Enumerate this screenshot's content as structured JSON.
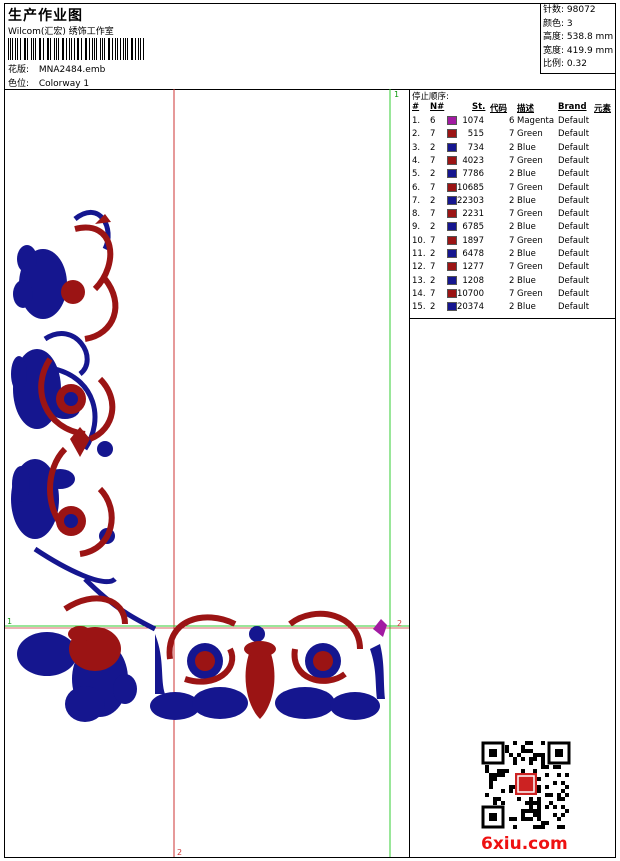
{
  "header": {
    "title": "生产作业图",
    "company": "Wilcom(汇宏) 绣饰工作室",
    "pattern_label": "花版:",
    "pattern_value": "MNA2484.emb",
    "colorway_label": "色位:",
    "colorway_value": "Colorway 1"
  },
  "stats": [
    {
      "label": "针数:",
      "value": "98072"
    },
    {
      "label": "颜色:",
      "value": "3"
    },
    {
      "label": "高度:",
      "value": "538.8 mm"
    },
    {
      "label": "宽度:",
      "value": "419.9 mm"
    },
    {
      "label": "比例:",
      "value": "0.32"
    }
  ],
  "stop_sequence": {
    "title": "停止顺序:",
    "headers": [
      "#",
      "N#",
      "St.",
      "代码",
      "描述",
      "Brand",
      "元素"
    ],
    "rows": [
      {
        "idx": "1.",
        "n": "6",
        "st": "1074",
        "code": "6",
        "desc": "Magenta",
        "brand": "Default",
        "color": "#a21aa2"
      },
      {
        "idx": "2.",
        "n": "7",
        "st": "515",
        "code": "7",
        "desc": "Green",
        "brand": "Default",
        "color": "#9b1414"
      },
      {
        "idx": "3.",
        "n": "2",
        "st": "734",
        "code": "2",
        "desc": "Blue",
        "brand": "Default",
        "color": "#15168f"
      },
      {
        "idx": "4.",
        "n": "7",
        "st": "4023",
        "code": "7",
        "desc": "Green",
        "brand": "Default",
        "color": "#9b1414"
      },
      {
        "idx": "5.",
        "n": "2",
        "st": "7786",
        "code": "2",
        "desc": "Blue",
        "brand": "Default",
        "color": "#15168f"
      },
      {
        "idx": "6.",
        "n": "7",
        "st": "10685",
        "code": "7",
        "desc": "Green",
        "brand": "Default",
        "color": "#9b1414"
      },
      {
        "idx": "7.",
        "n": "2",
        "st": "22303",
        "code": "2",
        "desc": "Blue",
        "brand": "Default",
        "color": "#15168f"
      },
      {
        "idx": "8.",
        "n": "7",
        "st": "2231",
        "code": "7",
        "desc": "Green",
        "brand": "Default",
        "color": "#9b1414"
      },
      {
        "idx": "9.",
        "n": "2",
        "st": "6785",
        "code": "2",
        "desc": "Blue",
        "brand": "Default",
        "color": "#15168f"
      },
      {
        "idx": "10.",
        "n": "7",
        "st": "1897",
        "code": "7",
        "desc": "Green",
        "brand": "Default",
        "color": "#9b1414"
      },
      {
        "idx": "11.",
        "n": "2",
        "st": "6478",
        "code": "2",
        "desc": "Blue",
        "brand": "Default",
        "color": "#15168f"
      },
      {
        "idx": "12.",
        "n": "7",
        "st": "1277",
        "code": "7",
        "desc": "Green",
        "brand": "Default",
        "color": "#9b1414"
      },
      {
        "idx": "13.",
        "n": "2",
        "st": "1208",
        "code": "2",
        "desc": "Blue",
        "brand": "Default",
        "color": "#15168f"
      },
      {
        "idx": "14.",
        "n": "7",
        "st": "10700",
        "code": "7",
        "desc": "Green",
        "brand": "Default",
        "color": "#9b1414"
      },
      {
        "idx": "15.",
        "n": "2",
        "st": "20374",
        "code": "2",
        "desc": "Blue",
        "brand": "Default",
        "color": "#15168f"
      }
    ]
  },
  "guides": {
    "marker_1": "1",
    "marker_2": "2"
  },
  "watermark": "6xiu.com",
  "colors": {
    "navy": "#15168f",
    "maroon": "#9b1414",
    "magenta": "#a21aa2",
    "guide_green": "#33cc33",
    "guide_red": "#cc3333",
    "watermark_red": "#ee1111"
  }
}
